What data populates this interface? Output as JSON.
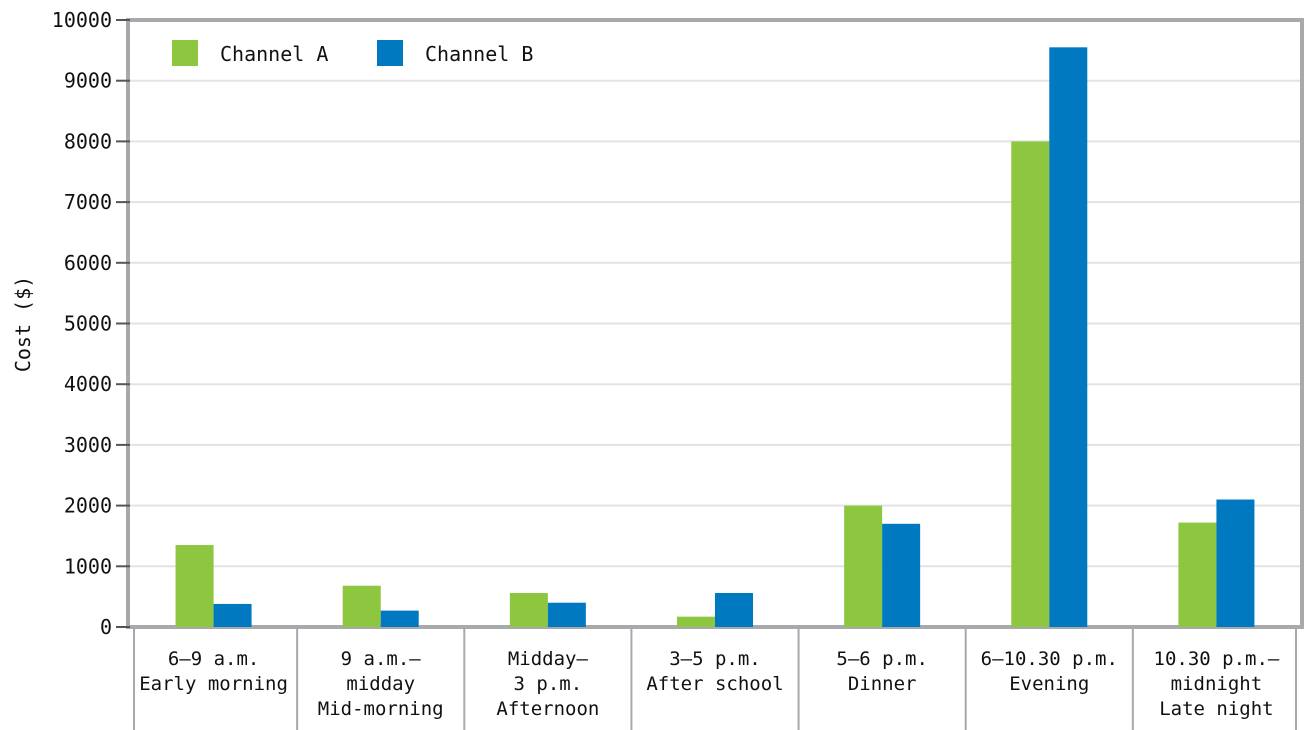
{
  "chart_data": {
    "type": "bar",
    "title": "",
    "xlabel": "",
    "ylabel": "Cost ($)",
    "ylim": [
      0,
      10000
    ],
    "yticks": [
      0,
      1000,
      2000,
      3000,
      4000,
      5000,
      6000,
      7000,
      8000,
      9000,
      10000
    ],
    "grid": true,
    "legend_position": "top-left",
    "categories": [
      [
        "6–9 a.m.",
        "Early morning"
      ],
      [
        "9 a.m.–",
        "midday",
        "Mid-morning"
      ],
      [
        "Midday–",
        "3 p.m.",
        "Afternoon"
      ],
      [
        "3–5 p.m.",
        "After school"
      ],
      [
        "5–6 p.m.",
        "Dinner"
      ],
      [
        "6–10.30 p.m.",
        "Evening"
      ],
      [
        "10.30 p.m.–",
        "midnight",
        "Late night"
      ]
    ],
    "series": [
      {
        "name": "Channel A",
        "color": "#8dc63f",
        "values": [
          1350,
          680,
          560,
          170,
          2000,
          8000,
          1720
        ]
      },
      {
        "name": "Channel B",
        "color": "#0079c1",
        "values": [
          380,
          270,
          400,
          560,
          1700,
          9550,
          2100
        ]
      }
    ]
  }
}
